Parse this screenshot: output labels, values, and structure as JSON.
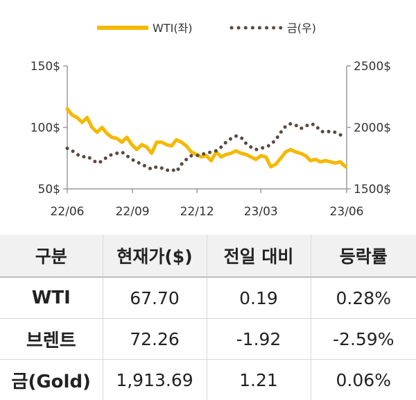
{
  "chart_data": {
    "type": "line",
    "x_ticks": [
      "22/06",
      "22/09",
      "22/12",
      "23/03",
      "23/06"
    ],
    "y_left_ticks": [
      "150$",
      "100$",
      "50$"
    ],
    "y_right_ticks": [
      "2500$",
      "2000$",
      "1500$"
    ],
    "y_left_range": [
      50,
      150
    ],
    "y_right_range": [
      1500,
      2500
    ],
    "legend_position": "top-center",
    "series": [
      {
        "name": "WTI(좌)",
        "axis": "left",
        "color": "#f5b800",
        "style": "solid",
        "x": [
          "2022-06-01",
          "2022-06-08",
          "2022-06-15",
          "2022-06-22",
          "2022-06-29",
          "2022-07-06",
          "2022-07-13",
          "2022-07-20",
          "2022-07-27",
          "2022-08-03",
          "2022-08-10",
          "2022-08-17",
          "2022-08-24",
          "2022-08-31",
          "2022-09-07",
          "2022-09-14",
          "2022-09-21",
          "2022-09-28",
          "2022-10-05",
          "2022-10-12",
          "2022-10-19",
          "2022-10-26",
          "2022-11-02",
          "2022-11-09",
          "2022-11-16",
          "2022-11-23",
          "2022-11-30",
          "2022-12-07",
          "2022-12-14",
          "2022-12-21",
          "2022-12-28",
          "2023-01-04",
          "2023-01-11",
          "2023-01-18",
          "2023-01-25",
          "2023-02-01",
          "2023-02-08",
          "2023-02-15",
          "2023-02-22",
          "2023-03-01",
          "2023-03-08",
          "2023-03-15",
          "2023-03-22",
          "2023-03-29",
          "2023-04-05",
          "2023-04-12",
          "2023-04-19",
          "2023-04-26",
          "2023-05-03",
          "2023-05-10",
          "2023-05-17",
          "2023-05-24",
          "2023-05-31",
          "2023-06-07",
          "2023-06-14",
          "2023-06-21",
          "2023-06-28"
        ],
        "values": [
          115,
          110,
          108,
          104,
          108,
          100,
          96,
          100,
          95,
          92,
          91,
          88,
          92,
          86,
          82,
          86,
          84,
          79,
          88,
          88,
          86,
          85,
          90,
          88,
          85,
          80,
          78,
          76,
          77,
          73,
          80,
          76,
          78,
          79,
          81,
          79,
          78,
          76,
          74,
          77,
          76,
          68,
          70,
          75,
          80,
          82,
          80,
          79,
          77,
          73,
          74,
          72,
          73,
          72,
          71,
          72,
          68
        ]
      },
      {
        "name": "금(우)",
        "axis": "right",
        "color": "#5a4a42",
        "style": "dotted",
        "x": [
          "2022-06-01",
          "2022-06-08",
          "2022-06-15",
          "2022-06-22",
          "2022-06-29",
          "2022-07-06",
          "2022-07-13",
          "2022-07-20",
          "2022-07-27",
          "2022-08-03",
          "2022-08-10",
          "2022-08-17",
          "2022-08-24",
          "2022-08-31",
          "2022-09-07",
          "2022-09-14",
          "2022-09-21",
          "2022-09-28",
          "2022-10-05",
          "2022-10-12",
          "2022-10-19",
          "2022-10-26",
          "2022-11-02",
          "2022-11-09",
          "2022-11-16",
          "2022-11-23",
          "2022-11-30",
          "2022-12-07",
          "2022-12-14",
          "2022-12-21",
          "2022-12-28",
          "2023-01-04",
          "2023-01-11",
          "2023-01-18",
          "2023-01-25",
          "2023-02-01",
          "2023-02-08",
          "2023-02-15",
          "2023-02-22",
          "2023-03-01",
          "2023-03-08",
          "2023-03-15",
          "2023-03-22",
          "2023-03-29",
          "2023-04-05",
          "2023-04-12",
          "2023-04-19",
          "2023-04-26",
          "2023-05-03",
          "2023-05-10",
          "2023-05-17",
          "2023-05-24",
          "2023-05-31",
          "2023-06-07",
          "2023-06-14",
          "2023-06-21",
          "2023-06-28"
        ],
        "values": [
          1830,
          1810,
          1780,
          1760,
          1765,
          1740,
          1710,
          1725,
          1760,
          1780,
          1790,
          1800,
          1770,
          1740,
          1720,
          1700,
          1680,
          1660,
          1680,
          1670,
          1650,
          1660,
          1640,
          1700,
          1740,
          1770,
          1770,
          1780,
          1790,
          1800,
          1810,
          1840,
          1880,
          1910,
          1930,
          1920,
          1870,
          1840,
          1820,
          1830,
          1840,
          1860,
          1900,
          1960,
          2010,
          2030,
          2020,
          1990,
          2010,
          2030,
          2020,
          1970,
          1960,
          1970,
          1960,
          1940,
          1920
        ]
      }
    ]
  },
  "table": {
    "headers": [
      "구분",
      "현재가($)",
      "전일 대비",
      "등락률"
    ],
    "rows": [
      [
        "WTI",
        "67.70",
        "0.19",
        "0.28%"
      ],
      [
        "브렌트",
        "72.26",
        "-1.92",
        "-2.59%"
      ],
      [
        "금(Gold)",
        "1,913.69",
        "1.21",
        "0.06%"
      ]
    ]
  }
}
